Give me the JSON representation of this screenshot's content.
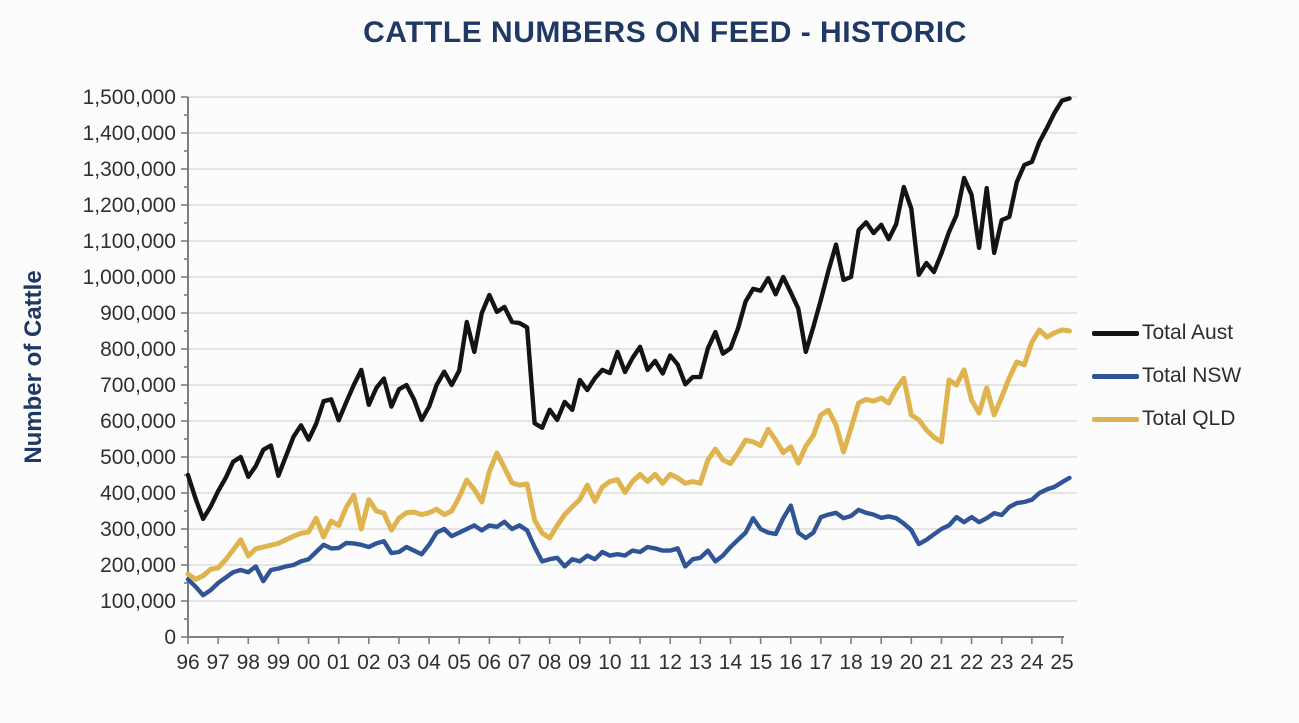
{
  "page": {
    "background": "#fcfcfc"
  },
  "chart": {
    "title": "CATTLE NUMBERS ON FEED - HISTORIC",
    "title_color": "#1F3864",
    "ylabel": "Number of Cattle",
    "axis_color": "#7f7f7f",
    "grid_color": "#dcdcdc",
    "tick_text_color": "#303030"
  },
  "legend": {
    "items": [
      {
        "label": "Total Aust",
        "color": "#141414"
      },
      {
        "label": "Total NSW",
        "color": "#2F5597"
      },
      {
        "label": "Total QLD",
        "color": "#DFB44F"
      }
    ]
  },
  "chart_data": {
    "type": "line",
    "title": "CATTLE NUMBERS ON FEED - HISTORIC",
    "xlabel": "",
    "ylabel": "Number of Cattle",
    "ylim": [
      0,
      1500000
    ],
    "y_tick_interval": 100000,
    "y_tick_labels": [
      "0",
      "100,000",
      "200,000",
      "300,000",
      "400,000",
      "500,000",
      "600,000",
      "700,000",
      "800,000",
      "900,000",
      "1,000,000",
      "1,100,000",
      "1,200,000",
      "1,300,000",
      "1,400,000",
      "1,500,000"
    ],
    "x_tick_labels": [
      "96",
      "97",
      "98",
      "99",
      "00",
      "01",
      "02",
      "03",
      "04",
      "05",
      "06",
      "07",
      "08",
      "09",
      "10",
      "11",
      "12",
      "13",
      "14",
      "15",
      "16",
      "17",
      "18",
      "19",
      "20",
      "21",
      "22",
      "23",
      "24",
      "25"
    ],
    "x_start_year": 1996,
    "x_step_years": 0.25,
    "grid": "horizontal",
    "legend_position": "right",
    "series": [
      {
        "name": "Total Aust",
        "color": "#141414",
        "stroke_width": 4.4,
        "values": [
          450000,
          385000,
          328000,
          362000,
          405000,
          442000,
          487000,
          500000,
          445000,
          475000,
          520000,
          532000,
          448000,
          502000,
          556000,
          588000,
          548000,
          592000,
          655000,
          660000,
          602000,
          652000,
          700000,
          742000,
          645000,
          692000,
          718000,
          640000,
          688000,
          700000,
          660000,
          603000,
          640000,
          700000,
          737000,
          700000,
          740000,
          875000,
          792000,
          900000,
          950000,
          903000,
          917000,
          875000,
          872000,
          860000,
          594000,
          581000,
          631000,
          603000,
          653000,
          631000,
          714000,
          686000,
          719000,
          742000,
          733000,
          792000,
          736000,
          775000,
          806000,
          742000,
          767000,
          732000,
          782000,
          757000,
          702000,
          722000,
          722000,
          802000,
          847000,
          787000,
          802000,
          857000,
          932000,
          967000,
          962000,
          997000,
          952000,
          1000000,
          957000,
          912000,
          792000,
          862000,
          937000,
          1017000,
          1090000,
          992000,
          1000000,
          1130000,
          1152000,
          1122000,
          1145000,
          1105000,
          1147000,
          1250000,
          1190000,
          1006000,
          1039000,
          1014000,
          1065000,
          1125000,
          1172000,
          1275000,
          1228000,
          1081000,
          1247000,
          1067000,
          1158000,
          1167000,
          1264000,
          1311000,
          1320000,
          1375000,
          1414000,
          1456000,
          1490000,
          1496000
        ]
      },
      {
        "name": "Total NSW",
        "color": "#2F5597",
        "stroke_width": 4.4,
        "values": [
          160000,
          140000,
          116000,
          130000,
          150000,
          165000,
          180000,
          186000,
          180000,
          196000,
          155000,
          186000,
          190000,
          196000,
          200000,
          210000,
          216000,
          236000,
          256000,
          246000,
          247000,
          261000,
          260000,
          256000,
          250000,
          260000,
          266000,
          233000,
          236000,
          250000,
          240000,
          230000,
          256000,
          290000,
          300000,
          280000,
          290000,
          300000,
          310000,
          296000,
          310000,
          306000,
          320000,
          300000,
          310000,
          296000,
          250000,
          210000,
          216000,
          220000,
          196000,
          216000,
          210000,
          226000,
          216000,
          236000,
          226000,
          230000,
          226000,
          240000,
          236000,
          250000,
          246000,
          240000,
          240000,
          246000,
          196000,
          216000,
          220000,
          240000,
          210000,
          226000,
          250000,
          270000,
          290000,
          330000,
          300000,
          290000,
          286000,
          330000,
          365000,
          290000,
          275000,
          290000,
          333000,
          340000,
          345000,
          330000,
          336000,
          353000,
          345000,
          340000,
          331000,
          335000,
          330000,
          315000,
          297000,
          258000,
          270000,
          285000,
          300000,
          310000,
          333000,
          319000,
          333000,
          319000,
          330000,
          344000,
          339000,
          361000,
          372000,
          375000,
          381000,
          400000,
          410000,
          417000,
          430000,
          442000
        ]
      },
      {
        "name": "Total QLD",
        "color": "#DFB44F",
        "stroke_width": 5.0,
        "values": [
          175000,
          160000,
          170000,
          188000,
          192000,
          215000,
          242000,
          270000,
          225000,
          245000,
          250000,
          255000,
          260000,
          270000,
          280000,
          288000,
          292000,
          330000,
          278000,
          322000,
          310000,
          360000,
          394000,
          300000,
          381000,
          350000,
          344000,
          297000,
          330000,
          345000,
          347000,
          340000,
          345000,
          355000,
          340000,
          350000,
          389000,
          436000,
          410000,
          375000,
          460000,
          511000,
          470000,
          428000,
          422000,
          425000,
          325000,
          289000,
          275000,
          310000,
          340000,
          362000,
          382000,
          422000,
          377000,
          417000,
          432000,
          437000,
          402000,
          432000,
          452000,
          432000,
          452000,
          427000,
          452000,
          442000,
          427000,
          432000,
          427000,
          492000,
          522000,
          492000,
          482000,
          512000,
          547000,
          542000,
          532000,
          577000,
          547000,
          512000,
          528000,
          483000,
          530000,
          560000,
          617000,
          630000,
          589000,
          514000,
          580000,
          650000,
          660000,
          655000,
          664000,
          650000,
          690000,
          719000,
          617000,
          603000,
          575000,
          555000,
          542000,
          714000,
          700000,
          742000,
          658000,
          622000,
          692000,
          617000,
          667000,
          720000,
          764000,
          756000,
          819000,
          853000,
          833000,
          845000,
          853000,
          850000
        ]
      }
    ]
  }
}
